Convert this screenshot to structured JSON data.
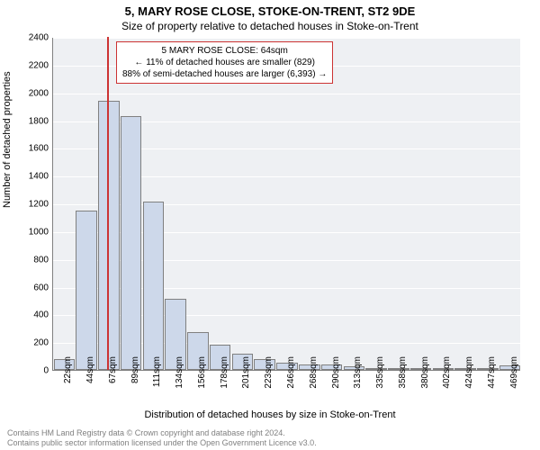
{
  "title_main": "5, MARY ROSE CLOSE, STOKE-ON-TRENT, ST2 9DE",
  "title_sub": "Size of property relative to detached houses in Stoke-on-Trent",
  "y_label": "Number of detached properties",
  "x_label": "Distribution of detached houses by size in Stoke-on-Trent",
  "footer_line1": "Contains HM Land Registry data © Crown copyright and database right 2024.",
  "footer_line2": "Contains public sector information licensed under the Open Government Licence v3.0.",
  "annotation": {
    "line1": "5 MARY ROSE CLOSE: 64sqm",
    "line2": "← 11% of detached houses are smaller (829)",
    "line3": "88% of semi-detached houses are larger (6,393) →"
  },
  "chart": {
    "type": "histogram",
    "bar_fill": "#cdd8ea",
    "bar_stroke": "#808080",
    "background": "#eef0f3",
    "grid_color": "#ffffff",
    "highlight_color": "#cc3333",
    "highlight_x_value": 64,
    "ylim": [
      0,
      2400
    ],
    "ytick_step": 200,
    "xlim": [
      10,
      480
    ],
    "x_ticks": [
      22,
      44,
      67,
      89,
      111,
      134,
      156,
      178,
      201,
      223,
      246,
      268,
      290,
      313,
      335,
      358,
      380,
      402,
      424,
      447,
      469
    ],
    "x_tick_suffix": "sqm",
    "values": [
      80,
      1150,
      1940,
      1830,
      1210,
      510,
      270,
      180,
      120,
      75,
      55,
      40,
      40,
      25,
      15,
      10,
      8,
      6,
      5,
      4,
      30
    ],
    "title_fontsize": 13,
    "label_fontsize": 11,
    "tick_fontsize": 10
  }
}
